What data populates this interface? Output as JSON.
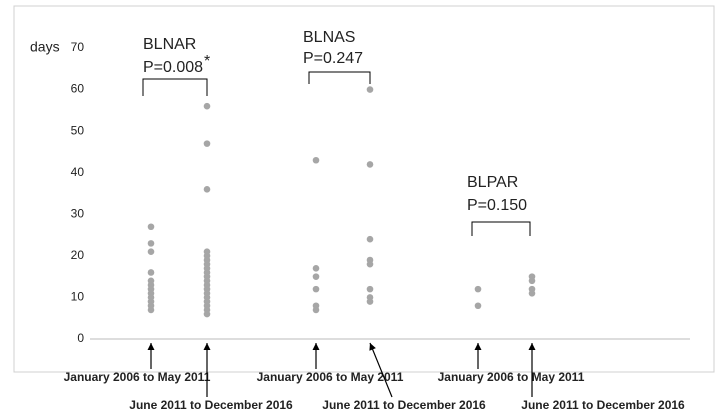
{
  "chart_data": {
    "type": "dotplot",
    "ylabel": "days",
    "ylim": [
      0,
      70
    ],
    "yticks": [
      0,
      10,
      20,
      30,
      40,
      50,
      60,
      70
    ],
    "color": "#a6a6a6",
    "categories": [
      "January 2006 to May 2011",
      "June 2011 to December 2016",
      "January 2006 to May 2011",
      "June 2011 to December 2016",
      "January 2006 to May 2011",
      "June 2011 to December 2016"
    ],
    "points": [
      [
        27,
        23,
        21,
        16,
        14,
        13,
        12,
        11,
        10,
        9,
        8,
        7
      ],
      [
        56,
        47,
        36,
        21,
        20,
        19,
        18,
        17,
        16,
        15,
        14,
        13,
        12,
        11,
        10,
        9,
        8,
        7,
        6
      ],
      [
        43,
        17,
        15,
        12,
        8,
        7
      ],
      [
        60,
        42,
        24,
        19,
        18,
        12,
        10,
        9
      ],
      [
        12,
        8
      ],
      [
        15,
        14,
        12,
        11
      ]
    ],
    "groups": [
      {
        "name": "BLNAR",
        "p": "P=0.008",
        "mark": "*"
      },
      {
        "name": "BLNAS",
        "p": "P=0.247"
      },
      {
        "name": "BLPAR",
        "p": "P=0.150"
      }
    ]
  }
}
